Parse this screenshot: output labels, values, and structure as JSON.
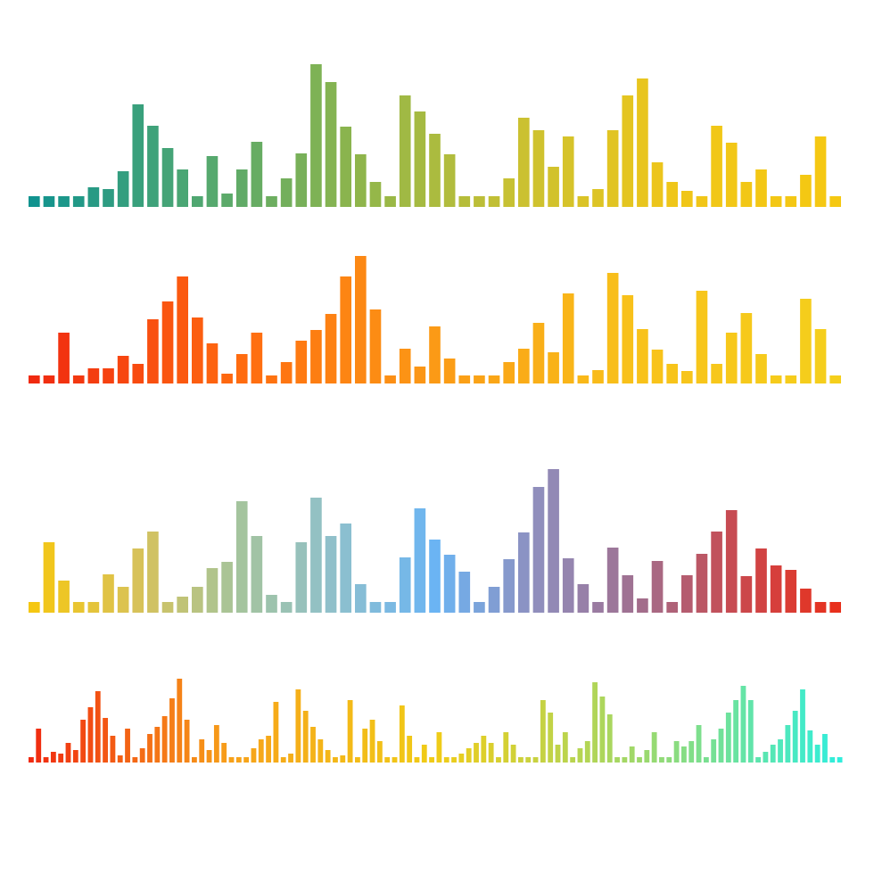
{
  "chart_data": [
    {
      "type": "bar",
      "gradient": [
        "#11938f",
        "#4fa772",
        "#8db54c",
        "#c9c132",
        "#f0c619",
        "#f5c812"
      ],
      "values": [
        12,
        12,
        12,
        12,
        22,
        20,
        40,
        115,
        91,
        66,
        42,
        12,
        57,
        15,
        42,
        73,
        12,
        32,
        60,
        160,
        140,
        90,
        59,
        28,
        12,
        125,
        107,
        82,
        59,
        12,
        12,
        12,
        32,
        100,
        86,
        45,
        79,
        12,
        20,
        86,
        125,
        144,
        50,
        28,
        18,
        12,
        91,
        72,
        28,
        42,
        12,
        12,
        36,
        79,
        12
      ]
    },
    {
      "type": "bar",
      "gradient": [
        "#f02a10",
        "#ff6a10",
        "#fb9a16",
        "#f8c21a",
        "#f5cf1c"
      ],
      "values": [
        9,
        9,
        57,
        9,
        17,
        17,
        31,
        22,
        72,
        92,
        120,
        74,
        45,
        11,
        33,
        57,
        9,
        24,
        48,
        60,
        78,
        120,
        143,
        83,
        9,
        39,
        19,
        64,
        28,
        9,
        9,
        9,
        24,
        39,
        68,
        35,
        101,
        9,
        15,
        124,
        99,
        61,
        38,
        22,
        14,
        104,
        22,
        57,
        79,
        33,
        9,
        9,
        95,
        61,
        9
      ]
    },
    {
      "type": "bar",
      "gradient": [
        "#f5c712",
        "#d9c257",
        "#a6c49a",
        "#8fc0cc",
        "#6bb4f3",
        "#8f8fbe",
        "#a07090",
        "#c94a50",
        "#e8301c"
      ],
      "values": [
        12,
        79,
        36,
        12,
        12,
        43,
        29,
        72,
        91,
        12,
        18,
        29,
        50,
        57,
        125,
        86,
        20,
        12,
        79,
        129,
        86,
        100,
        32,
        12,
        12,
        62,
        117,
        82,
        65,
        46,
        12,
        29,
        60,
        90,
        141,
        161,
        61,
        32,
        12,
        73,
        42,
        16,
        58,
        12,
        42,
        66,
        91,
        115,
        41,
        72,
        53,
        48,
        27,
        12,
        12
      ]
    },
    {
      "type": "bar",
      "gradient": [
        "#f02a10",
        "#f7a21a",
        "#f0cc17",
        "#9fd86a",
        "#30eedc"
      ],
      "values": [
        6,
        38,
        6,
        12,
        10,
        22,
        14,
        48,
        62,
        80,
        50,
        30,
        8,
        38,
        6,
        16,
        32,
        40,
        52,
        72,
        94,
        48,
        6,
        26,
        14,
        42,
        22,
        6,
        6,
        6,
        16,
        26,
        30,
        68,
        6,
        10,
        82,
        58,
        40,
        26,
        14,
        6,
        8,
        70,
        6,
        38,
        48,
        24,
        6,
        6,
        64,
        30,
        6,
        20,
        6,
        34,
        6,
        6,
        10,
        16,
        22,
        30,
        22,
        6,
        34,
        20,
        6,
        6,
        6,
        70,
        56,
        20,
        34,
        6,
        16,
        24,
        90,
        74,
        54,
        6,
        6,
        18,
        6,
        14,
        34,
        6,
        6,
        24,
        18,
        24,
        42,
        6,
        26,
        38,
        56,
        70,
        86,
        70,
        6,
        12,
        20,
        26,
        42,
        58,
        82,
        36,
        20,
        32,
        6,
        6
      ]
    }
  ]
}
